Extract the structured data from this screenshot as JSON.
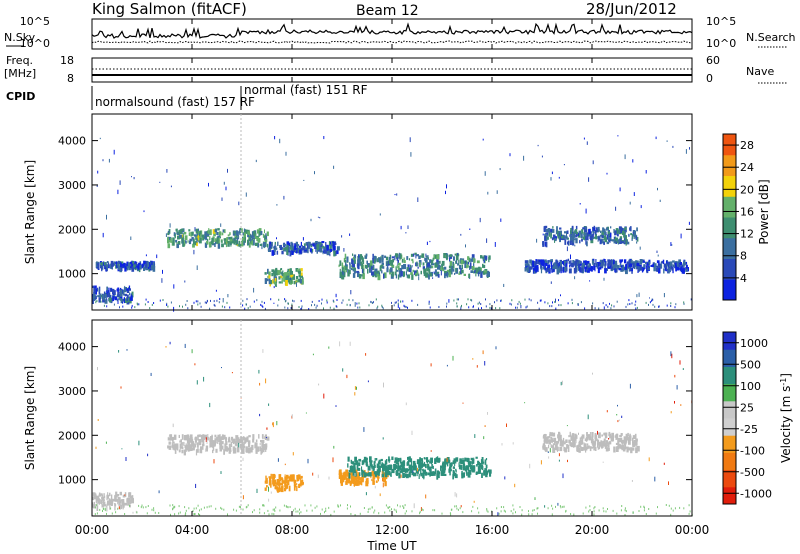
{
  "header": {
    "site": "King Salmon (fitACF)",
    "beam": "Beam 12",
    "date": "28/Jun/2012"
  },
  "side_labels": {
    "nsky": "N.Sky",
    "freq_top": "Freq.",
    "freq_bottom": "[MHz]",
    "cpid": "CPID",
    "nsearch": "N.Search",
    "nave": "Nave"
  },
  "strip_ticks": {
    "noise_left": [
      "10^5",
      "10^0"
    ],
    "noise_right": [
      "10^5",
      "10^0"
    ],
    "freq_left": [
      "18",
      "8"
    ],
    "nave_right": [
      "60",
      "0"
    ]
  },
  "cpid_labels": [
    {
      "text": "normalsound (fast) 157 RF"
    },
    {
      "text": "normal (fast) 151 RF"
    }
  ],
  "colors": {
    "power_scale": [
      "#0c22e0",
      "#2a49b8",
      "#3b6fa0",
      "#3e8e70",
      "#63b06a",
      "#f3d20a",
      "#f29a19",
      "#ef5510",
      "#e11d0b"
    ],
    "velocity_scale": [
      "#2030c8",
      "#2b5fa8",
      "#2c8f7b",
      "#4cb152",
      "#c8c8c8",
      "#cfcfcf",
      "#f39b1d",
      "#f07a12",
      "#ec4a0f",
      "#e11d0b"
    ],
    "ground_scatter": "#bdbdbd"
  },
  "chart_data": [
    {
      "type": "heatmap",
      "panel": "power",
      "ylabel": "Slant Range [km]",
      "ylim": [
        180,
        4600
      ],
      "yticks": [
        "1000",
        "2000",
        "3000",
        "4000"
      ],
      "xlim": [
        "00:00",
        "24:00"
      ],
      "colorbar_label": "Power [dB]",
      "colorbar_ticks": [
        "4",
        "8",
        "12",
        "16",
        "20",
        "24",
        "28"
      ],
      "colorbar_range": [
        0,
        30
      ],
      "scatter_regions": [
        {
          "t_start": 0.0,
          "t_end": 1.6,
          "range_low": 400,
          "range_high": 750,
          "power_db": 6
        },
        {
          "t_start": 0.1,
          "t_end": 2.5,
          "range_low": 1150,
          "range_high": 1300,
          "power_db": 6
        },
        {
          "t_start": 3.0,
          "t_end": 7.0,
          "range_low": 1650,
          "range_high": 2050,
          "power_db": 12
        },
        {
          "t_start": 7.0,
          "t_end": 9.8,
          "range_low": 1500,
          "range_high": 1750,
          "power_db": 6
        },
        {
          "t_start": 6.9,
          "t_end": 8.4,
          "range_low": 800,
          "range_high": 1150,
          "power_db": 14
        },
        {
          "t_start": 9.8,
          "t_end": 15.9,
          "range_low": 950,
          "range_high": 1500,
          "power_db": 10
        },
        {
          "t_start": 18.0,
          "t_end": 21.8,
          "range_low": 1700,
          "range_high": 2100,
          "power_db": 8
        },
        {
          "t_start": 17.3,
          "t_end": 23.8,
          "range_low": 1100,
          "range_high": 1350,
          "power_db": 5
        }
      ]
    },
    {
      "type": "heatmap",
      "panel": "velocity",
      "ylabel": "Slant Range [km]",
      "ylim": [
        180,
        4600
      ],
      "yticks": [
        "1000",
        "2000",
        "3000",
        "4000"
      ],
      "xlim": [
        "00:00",
        "24:00"
      ],
      "xticks": [
        "00:00",
        "04:00",
        "08:00",
        "12:00",
        "16:00",
        "20:00",
        "00:00"
      ],
      "xlabel": "Time UT",
      "colorbar_label": "Velocity [m s^-1]",
      "colorbar_ticks": [
        "1000",
        "500",
        "100",
        "25",
        "-25",
        "-100",
        "-500",
        "-1000"
      ],
      "scatter_regions": [
        {
          "t_start": 0.0,
          "t_end": 1.6,
          "range_low": 400,
          "range_high": 750,
          "velocity": 0,
          "ground_scatter": true
        },
        {
          "t_start": 3.0,
          "t_end": 7.0,
          "range_low": 1650,
          "range_high": 2050,
          "velocity": 0,
          "ground_scatter": true
        },
        {
          "t_start": 6.9,
          "t_end": 8.4,
          "range_low": 800,
          "range_high": 1150,
          "velocity": -350,
          "ground_scatter": false
        },
        {
          "t_start": 9.8,
          "t_end": 11.8,
          "range_low": 950,
          "range_high": 1250,
          "velocity": -250,
          "ground_scatter": false
        },
        {
          "t_start": 10.2,
          "t_end": 15.9,
          "range_low": 1100,
          "range_high": 1550,
          "velocity": 150,
          "ground_scatter": false
        },
        {
          "t_start": 18.0,
          "t_end": 21.8,
          "range_low": 1700,
          "range_high": 2100,
          "velocity": 0,
          "ground_scatter": true
        }
      ]
    }
  ]
}
